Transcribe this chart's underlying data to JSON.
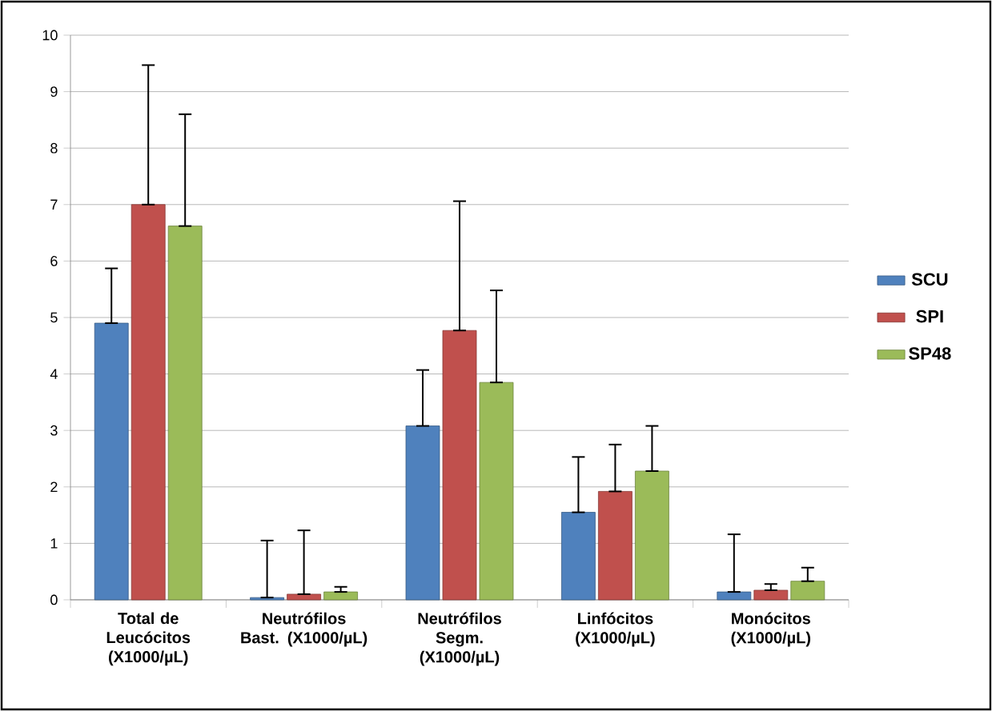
{
  "chart_data": {
    "type": "bar",
    "categories": [
      "Total de Leucócitos (X1000/µL)",
      "Neutrófilos Bast. (X1000/µL)",
      "Neutrófilos Segm. (X1000/µL)",
      "Linfócitos (X1000/µL)",
      "Monócitos (X1000/µL)"
    ],
    "series": [
      {
        "name": "SCU",
        "color": "#4f81bd",
        "values": [
          4.9,
          0.04,
          3.08,
          1.55,
          0.14
        ],
        "errors": [
          [
            4.9,
            5.87
          ],
          [
            0.04,
            1.05
          ],
          [
            3.08,
            4.07
          ],
          [
            1.55,
            2.53
          ],
          [
            0.14,
            1.16
          ]
        ]
      },
      {
        "name": "SPI",
        "color": "#c0504d",
        "values": [
          7.0,
          0.1,
          4.77,
          1.92,
          0.17
        ],
        "errors": [
          [
            7.0,
            9.47
          ],
          [
            0.1,
            1.23
          ],
          [
            4.77,
            7.06
          ],
          [
            1.92,
            2.75
          ],
          [
            0.17,
            0.28
          ]
        ]
      },
      {
        "name": "SP48",
        "color": "#9bbb59",
        "values": [
          6.62,
          0.14,
          3.85,
          2.28,
          0.33
        ],
        "errors": [
          [
            6.62,
            8.6
          ],
          [
            0.14,
            0.23
          ],
          [
            3.85,
            5.48
          ],
          [
            2.28,
            3.08
          ],
          [
            0.33,
            0.57
          ]
        ]
      }
    ],
    "ylim": [
      0,
      10
    ],
    "yticks": [
      0,
      1,
      2,
      3,
      4,
      5,
      6,
      7,
      8,
      9,
      10
    ],
    "grid": "y",
    "legend": "right"
  }
}
